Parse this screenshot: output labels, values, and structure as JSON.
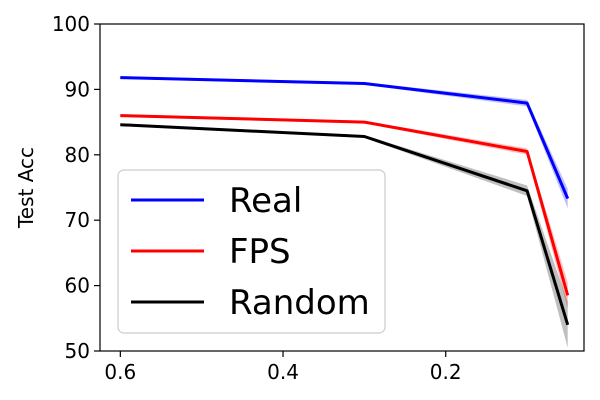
{
  "chart_data": {
    "type": "line",
    "title": "",
    "xlabel": "",
    "ylabel": "Test Acc",
    "x": [
      0.6,
      0.3,
      0.1,
      0.05
    ],
    "xlim": [
      0.625,
      0.03
    ],
    "ylim": [
      50,
      100
    ],
    "x_ticks": [
      0.6,
      0.4,
      0.2
    ],
    "x_tick_labels": [
      "0.6",
      "0.4",
      "0.2"
    ],
    "y_ticks": [
      50,
      60,
      70,
      80,
      90,
      100
    ],
    "y_tick_labels": [
      "50",
      "60",
      "70",
      "80",
      "90",
      "100"
    ],
    "grid": false,
    "legend_position": "lower-left",
    "series": [
      {
        "name": "Real",
        "color": "#0000ff",
        "values": [
          91.8,
          90.9,
          87.9,
          73.3
        ],
        "band": [
          0.2,
          0.2,
          0.5,
          1.5
        ]
      },
      {
        "name": "FPS",
        "color": "#ff0000",
        "values": [
          86.0,
          85.0,
          80.5,
          58.5
        ],
        "band": [
          0.2,
          0.2,
          0.5,
          2.0
        ]
      },
      {
        "name": "Random",
        "color": "#000000",
        "values": [
          84.6,
          82.8,
          74.5,
          54.0
        ],
        "band": [
          0.2,
          0.2,
          0.8,
          3.5
        ]
      }
    ]
  }
}
